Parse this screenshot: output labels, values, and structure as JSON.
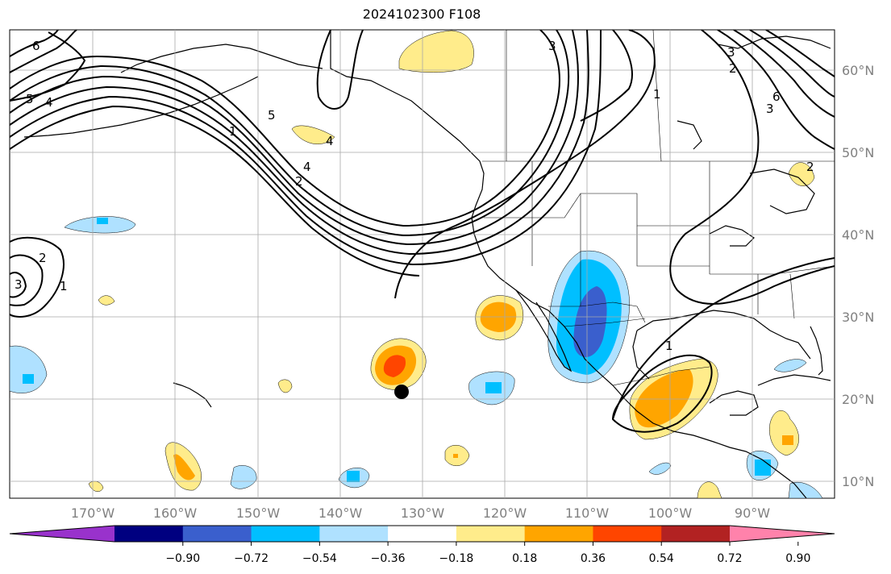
{
  "title": "2024102300 F108",
  "lat_labels": [
    "60°N",
    "50°N",
    "40°N",
    "30°N",
    "20°N",
    "10°N"
  ],
  "lon_labels": [
    "170°W",
    "160°W",
    "150°W",
    "140°W",
    "130°W",
    "120°W",
    "110°W",
    "100°W",
    "90°W"
  ],
  "colorbar": {
    "colors": [
      "#9932cc",
      "#000080",
      "#3a5fcd",
      "#00bfff",
      "#afe1ff",
      "#ffffff",
      "#ffec8b",
      "#ffa500",
      "#ff4500",
      "#b22222",
      "#ff82ab"
    ],
    "tick_labels": [
      "−0.90",
      "−0.72",
      "−0.54",
      "−0.36",
      "−0.18",
      "0.18",
      "0.36",
      "0.54",
      "0.72",
      "0.90"
    ]
  },
  "contour_labels": [
    "6",
    "5",
    "4",
    "3",
    "2",
    "1",
    "1",
    "2",
    "3",
    "5",
    "4",
    "3",
    "2",
    "1",
    "1",
    "2",
    "3",
    "4",
    "5",
    "6",
    "2",
    "1"
  ],
  "marker": "black dot"
}
